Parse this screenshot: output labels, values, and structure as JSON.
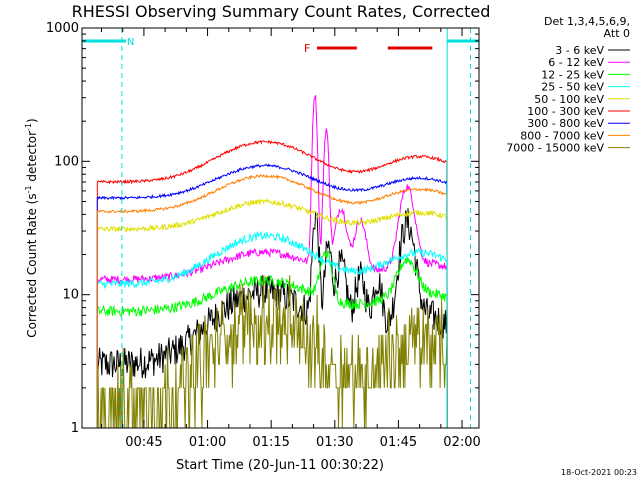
{
  "chart_data": {
    "type": "line",
    "title": "RHESSI Observing Summary Count Rates, Corrected",
    "xlabel": "Start Time (20-Jun-11 00:30:22)",
    "ylabel_main": "Corrected Count Rate (s",
    "ylabel_sup1": "-1",
    "ylabel_mid": " detector",
    "ylabel_sup2": "-1",
    "ylabel_end": ")",
    "yscale": "log",
    "ylim": [
      1,
      1000
    ],
    "xlim_minutes": [
      30.4,
      124
    ],
    "x_ticks": [
      {
        "label": "00:45",
        "minute": 45
      },
      {
        "label": "01:00",
        "minute": 60
      },
      {
        "label": "01:15",
        "minute": 75
      },
      {
        "label": "01:30",
        "minute": 90
      },
      {
        "label": "01:45",
        "minute": 105
      },
      {
        "label": "02:00",
        "minute": 120
      }
    ],
    "y_ticks": [
      {
        "label": "1",
        "value": 1
      },
      {
        "label": "10",
        "value": 10
      },
      {
        "label": "100",
        "value": 100
      },
      {
        "label": "1000",
        "value": 1000
      }
    ],
    "legend_header": [
      "Det 1,3,4,5,6,9,",
      "Att 0"
    ],
    "legend_position": "right",
    "series": [
      {
        "name": "3 - 6 keV",
        "color": "#000000",
        "base": 3.0,
        "hump": 3.5,
        "noise": 0.25
      },
      {
        "name": "6 - 12 keV",
        "color": "#ff00ff",
        "base": 13,
        "hump": 1.6,
        "noise": 0.06
      },
      {
        "name": "12 - 25 keV",
        "color": "#00ff00",
        "base": 7.5,
        "hump": 1.7,
        "noise": 0.08
      },
      {
        "name": "25 - 50 keV",
        "color": "#00ffff",
        "base": 12,
        "hump": 2.3,
        "noise": 0.06
      },
      {
        "name": "50 - 100 keV",
        "color": "#e0e000",
        "base": 31,
        "hump": 1.6,
        "noise": 0.04
      },
      {
        "name": "100 - 300 keV",
        "color": "#ff0000",
        "base": 70,
        "hump": 2.0,
        "noise": 0.02
      },
      {
        "name": "300 - 800 keV",
        "color": "#0000ff",
        "base": 53,
        "hump": 1.75,
        "noise": 0.02
      },
      {
        "name": "800 - 7000 keV",
        "color": "#ff8000",
        "base": 42,
        "hump": 1.85,
        "noise": 0.02
      },
      {
        "name": "7000 - 15000 keV",
        "color": "#808000",
        "base": 1.5,
        "hump": 4.3,
        "noise": 0.35
      }
    ],
    "annotations": {
      "night_label": "N",
      "flare_label": "F",
      "night_color": "#00e0e0",
      "flare_color": "#e00000",
      "night_bars_minutes": [
        [
          30.4,
          40.8
        ],
        [
          116.5,
          124
        ]
      ],
      "night_dashed_minutes": [
        39.8,
        122
      ],
      "saa_line_minute": 116.5,
      "flare_bars_minutes": [
        [
          85.8,
          95.2
        ],
        [
          102.5,
          113
        ]
      ]
    }
  },
  "footer": {
    "date": "18-Oct-2021 00:23"
  }
}
